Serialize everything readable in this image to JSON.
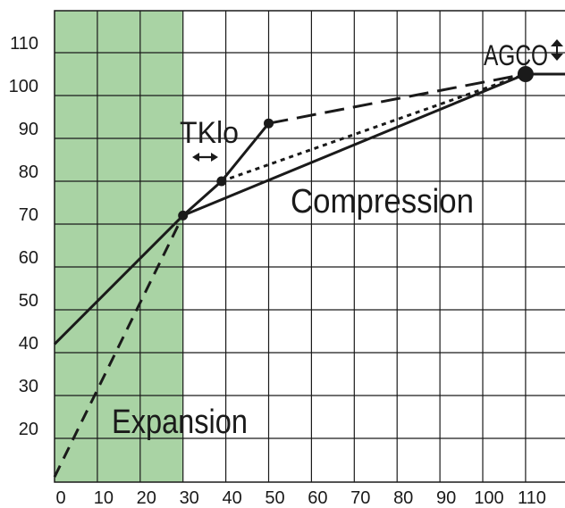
{
  "chart_data": {
    "type": "line",
    "title": "",
    "xlabel": "",
    "ylabel": "",
    "xlim": [
      0,
      120
    ],
    "ylim": [
      10,
      120
    ],
    "grid": true,
    "x_ticks": [
      "0",
      "10",
      "20",
      "30",
      "40",
      "50",
      "60",
      "70",
      "80",
      "90",
      "100",
      "110"
    ],
    "y_ticks": [
      "20",
      "30",
      "40",
      "50",
      "60",
      "70",
      "80",
      "90",
      "100",
      "110"
    ],
    "x_tick_values": [
      0,
      10,
      20,
      30,
      40,
      50,
      60,
      70,
      80,
      90,
      100,
      110
    ],
    "y_tick_values": [
      20,
      30,
      40,
      50,
      60,
      70,
      80,
      90,
      100,
      110
    ],
    "region": {
      "label": "Expansion",
      "x_range": [
        0,
        30
      ],
      "color": "#a9d3a4"
    },
    "series": [
      {
        "style": "solid",
        "points": [
          [
            0,
            42
          ],
          [
            30,
            72
          ],
          [
            39,
            80
          ],
          [
            50,
            93.5
          ]
        ]
      },
      {
        "style": "solid",
        "points": [
          [
            30,
            72
          ],
          [
            110,
            105
          ],
          [
            120,
            105
          ]
        ]
      },
      {
        "style": "dashed-long",
        "points": [
          [
            0,
            11
          ],
          [
            30,
            72
          ]
        ]
      },
      {
        "style": "dashed-long",
        "points": [
          [
            50,
            93.5
          ],
          [
            110,
            105
          ]
        ]
      },
      {
        "style": "dotted",
        "points": [
          [
            39,
            80
          ],
          [
            110,
            105
          ]
        ]
      }
    ],
    "markers": [
      {
        "x": 30,
        "y": 72,
        "size": "small"
      },
      {
        "x": 39,
        "y": 80,
        "size": "small"
      },
      {
        "x": 50,
        "y": 93.5,
        "size": "small"
      },
      {
        "x": 110,
        "y": 105,
        "size": "large"
      }
    ],
    "annotations": {
      "tklo": "TKlo",
      "agco": "AGCO",
      "compression": "Compression",
      "expansion": "Expansion"
    }
  }
}
